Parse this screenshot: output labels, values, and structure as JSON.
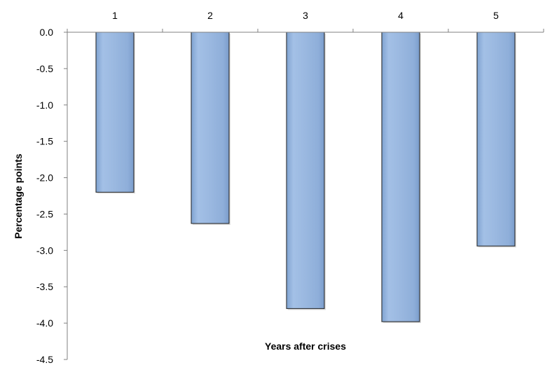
{
  "chart_data": {
    "type": "bar",
    "title": "",
    "xlabel": "Years after crises",
    "ylabel": "Percentage points",
    "categories": [
      "1",
      "2",
      "3",
      "4",
      "5"
    ],
    "values": [
      -2.2,
      -2.63,
      -3.8,
      -3.98,
      -2.94
    ],
    "ylim": [
      -4.5,
      0.0
    ],
    "yticks": [
      "0.0",
      "-0.5",
      "-1.0",
      "-1.5",
      "-2.0",
      "-2.5",
      "-3.0",
      "-3.5",
      "-4.0",
      "-4.5"
    ],
    "x_axis_position": "top",
    "grid": false,
    "legend": "none",
    "bar_color": "#95b3d7",
    "bar_stroke": "#1f1f1f"
  }
}
